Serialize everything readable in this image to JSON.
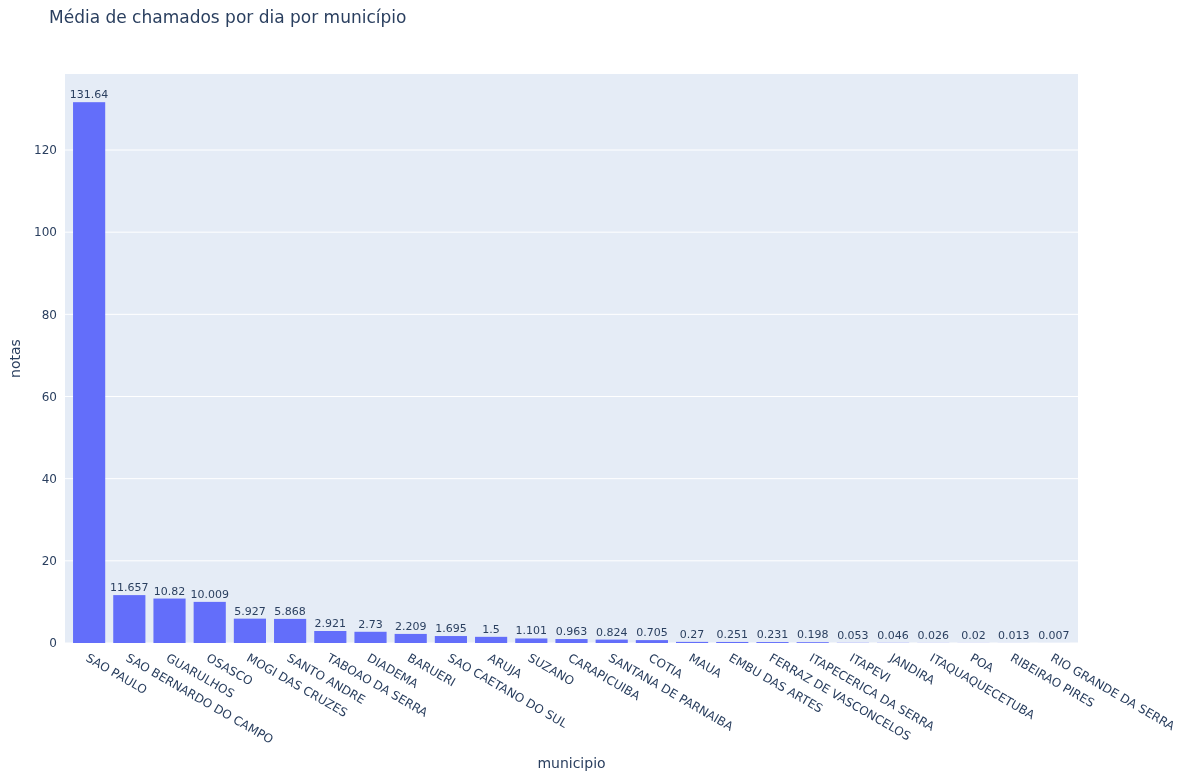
{
  "chart_data": {
    "type": "bar",
    "title": "Média de chamados por dia por município",
    "xlabel": "municipio",
    "ylabel": "notas",
    "categories": [
      "SAO PAULO",
      "SAO BERNARDO DO CAMPO",
      "GUARULHOS",
      "OSASCO",
      "MOGI DAS CRUZES",
      "SANTO ANDRE",
      "TABOAO DA SERRA",
      "DIADEMA",
      "BARUERI",
      "SAO CAETANO DO SUL",
      "ARUJA",
      "SUZANO",
      "CARAPICUIBA",
      "SANTANA DE PARNAIBA",
      "COTIA",
      "MAUA",
      "EMBU DAS ARTES",
      "FERRAZ DE VASCONCELOS",
      "ITAPECERICA DA SERRA",
      "ITAPEVI",
      "JANDIRA",
      "ITAQUAQUECETUBA",
      "POA",
      "RIBEIRAO PIRES",
      "RIO GRANDE DA SERRA"
    ],
    "values": [
      131.64,
      11.657,
      10.82,
      10.009,
      5.927,
      5.868,
      2.921,
      2.73,
      2.209,
      1.695,
      1.5,
      1.101,
      0.963,
      0.824,
      0.705,
      0.27,
      0.251,
      0.231,
      0.198,
      0.053,
      0.046,
      0.026,
      0.02,
      0.013,
      0.007
    ],
    "color": "#636efa",
    "ylim": [
      0,
      138.5
    ],
    "yticks": [
      0,
      20,
      40,
      60,
      80,
      100,
      120
    ],
    "grid": "y",
    "data_labels": true
  }
}
